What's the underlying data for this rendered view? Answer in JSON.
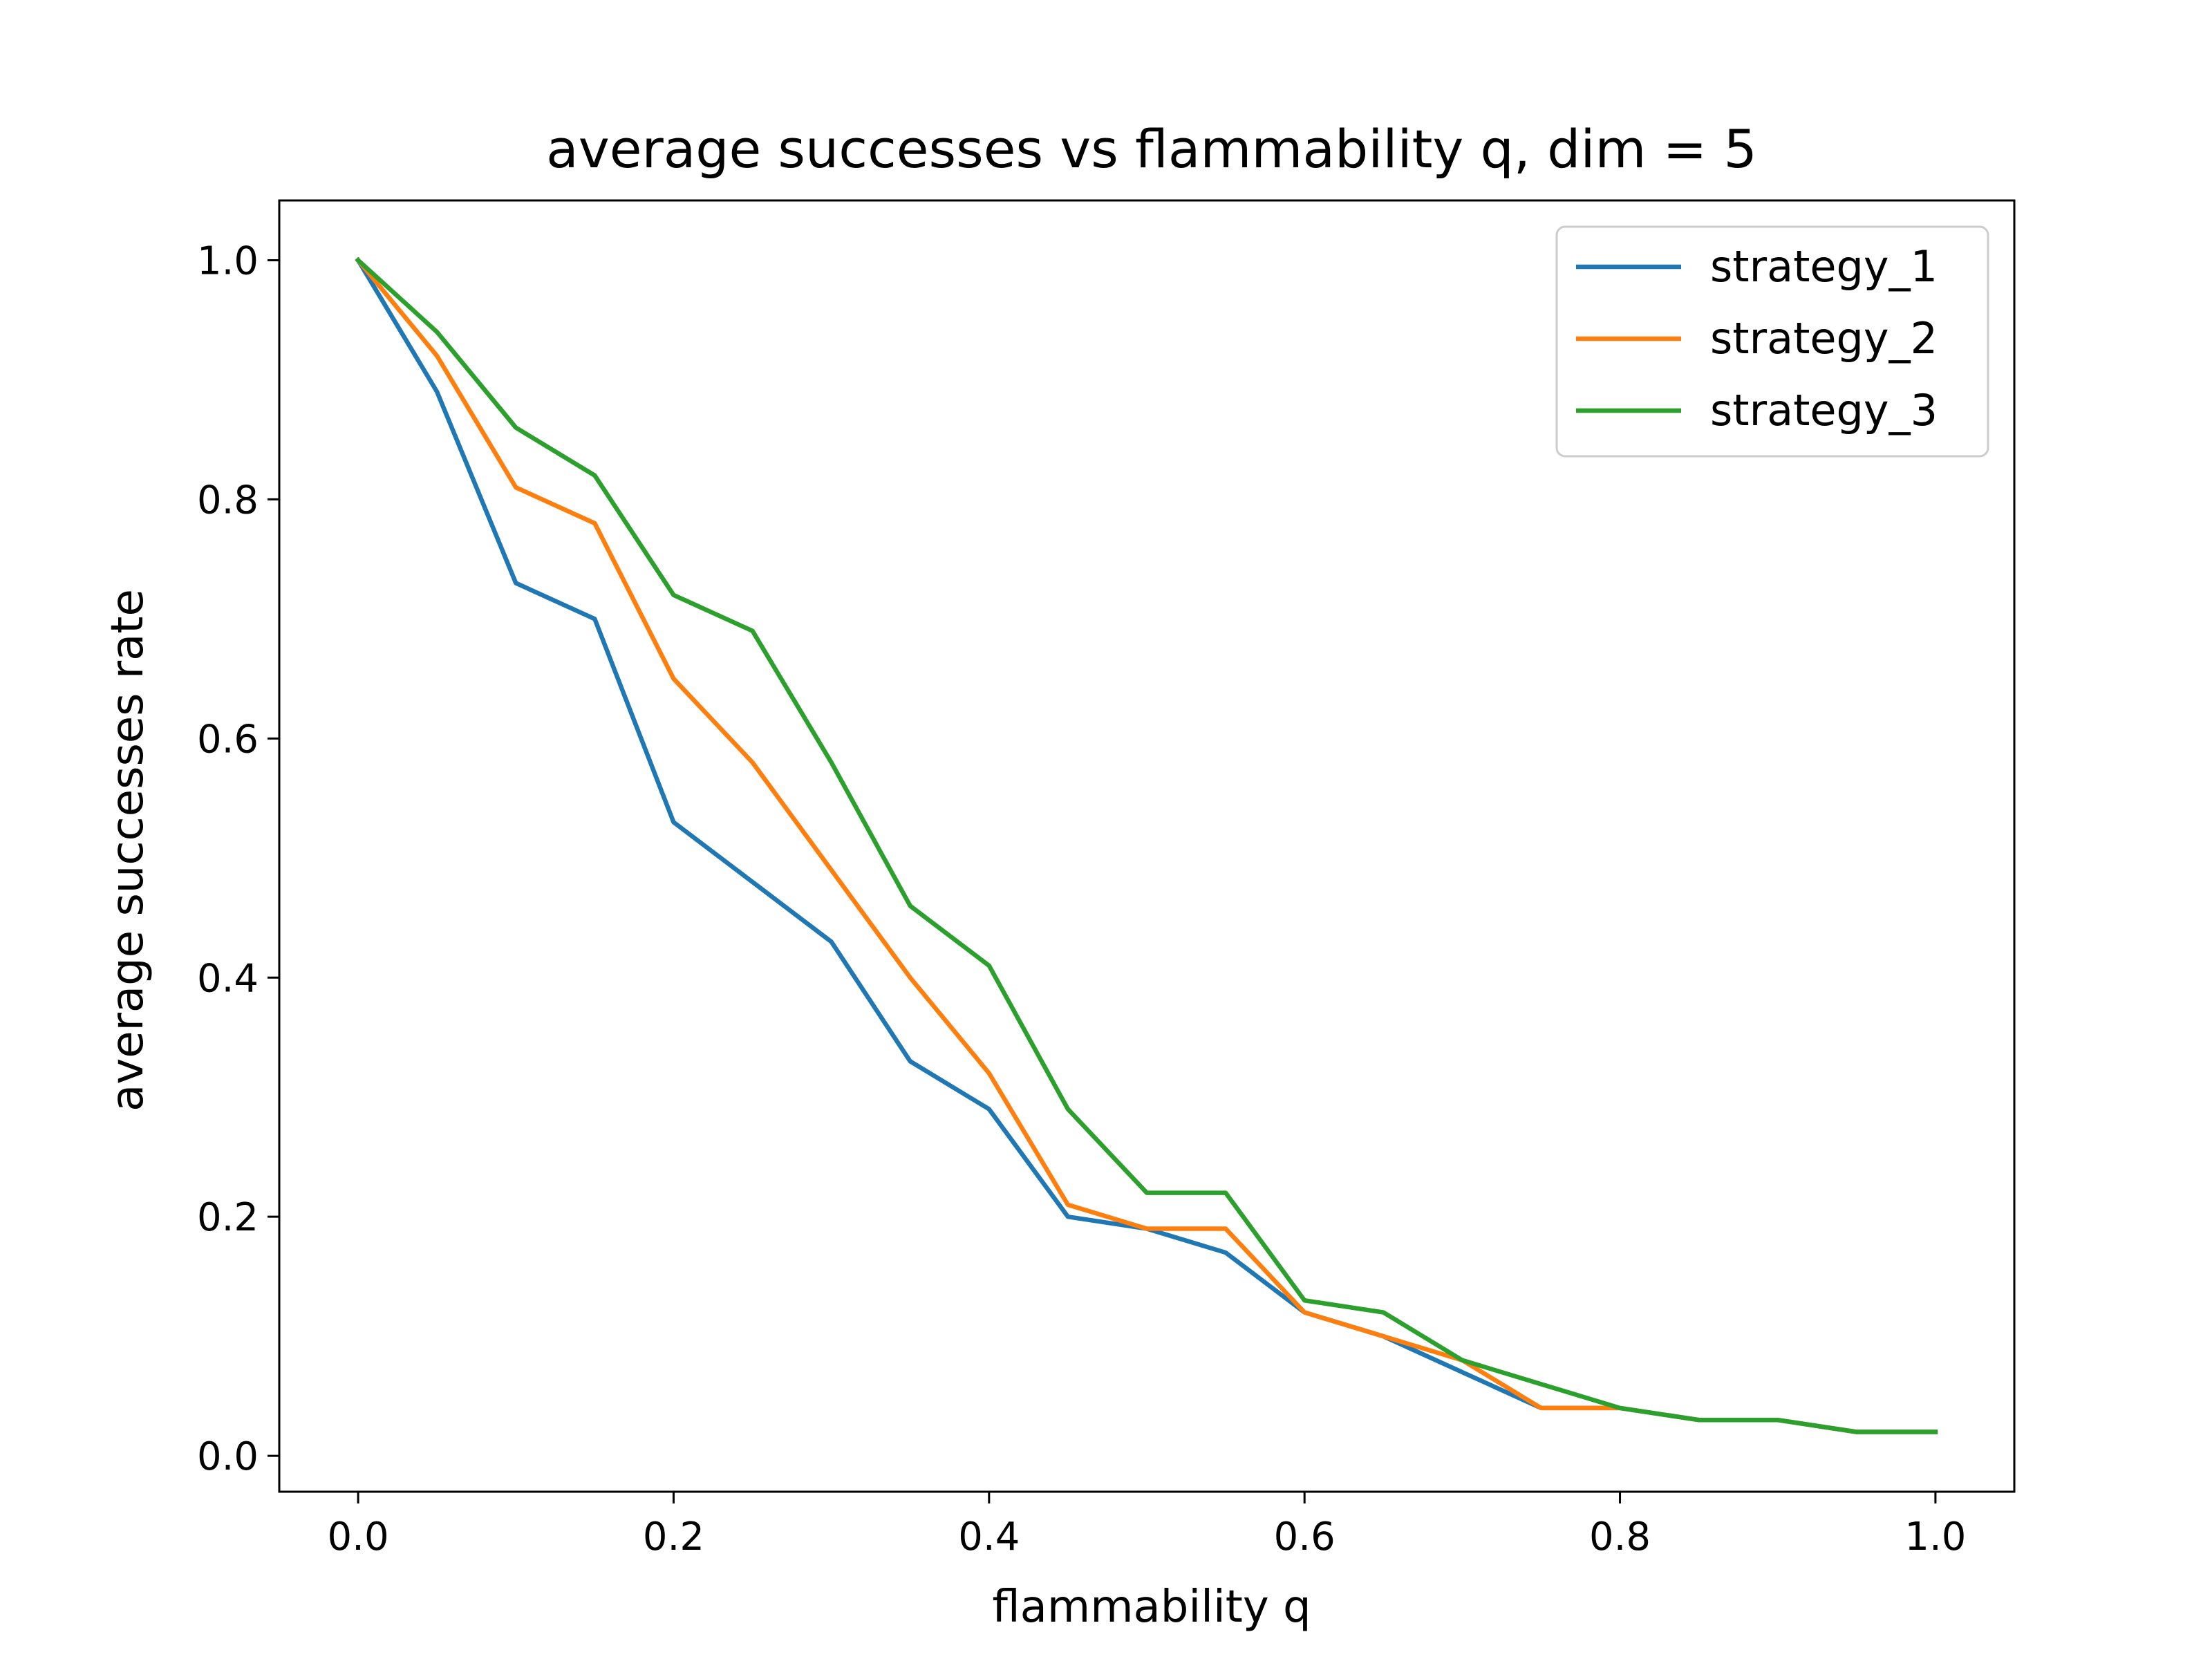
{
  "chart_data": {
    "type": "line",
    "title": "average successes vs flammability q, dim = 5",
    "xlabel": "flammability q",
    "ylabel": "average successes rate",
    "xlim": [
      -0.05,
      1.05
    ],
    "ylim": [
      -0.03,
      1.05
    ],
    "xticks": [
      0.0,
      0.2,
      0.4,
      0.6,
      0.8,
      1.0
    ],
    "xtick_labels": [
      "0.0",
      "0.2",
      "0.4",
      "0.6",
      "0.8",
      "1.0"
    ],
    "yticks": [
      0.0,
      0.2,
      0.4,
      0.6,
      0.8,
      1.0
    ],
    "ytick_labels": [
      "0.0",
      "0.2",
      "0.4",
      "0.6",
      "0.8",
      "1.0"
    ],
    "grid": false,
    "legend_position": "top-right",
    "x": [
      0.0,
      0.05,
      0.1,
      0.15,
      0.2,
      0.25,
      0.3,
      0.35,
      0.4,
      0.45,
      0.5,
      0.55,
      0.6,
      0.65,
      0.7,
      0.75,
      0.8,
      0.85,
      0.9,
      0.95,
      1.0
    ],
    "series": [
      {
        "name": "strategy_1",
        "color": "#1f77b4",
        "values": [
          1.0,
          0.89,
          0.73,
          0.7,
          0.53,
          0.48,
          0.43,
          0.33,
          0.29,
          0.2,
          0.19,
          0.17,
          0.12,
          0.1,
          0.07,
          0.04,
          0.04,
          0.03,
          0.03,
          0.02,
          0.02
        ]
      },
      {
        "name": "strategy_2",
        "color": "#ff7f0e",
        "values": [
          1.0,
          0.92,
          0.81,
          0.78,
          0.65,
          0.58,
          0.49,
          0.4,
          0.32,
          0.21,
          0.19,
          0.19,
          0.12,
          0.1,
          0.08,
          0.04,
          0.04,
          0.03,
          0.03,
          0.02,
          0.02
        ]
      },
      {
        "name": "strategy_3",
        "color": "#2ca02c",
        "values": [
          1.0,
          0.94,
          0.86,
          0.82,
          0.72,
          0.69,
          0.58,
          0.46,
          0.41,
          0.29,
          0.22,
          0.22,
          0.13,
          0.12,
          0.08,
          0.06,
          0.04,
          0.03,
          0.03,
          0.02,
          0.02
        ]
      }
    ]
  }
}
